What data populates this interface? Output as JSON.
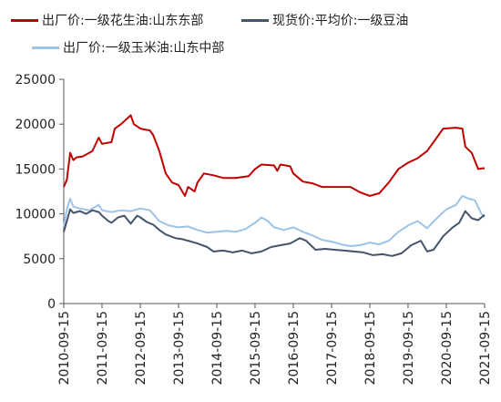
{
  "chart_data": {
    "type": "line",
    "title": "",
    "xlabel": "",
    "ylabel": "",
    "ylim": [
      0,
      25000
    ],
    "yticks": [
      0,
      5000,
      10000,
      15000,
      20000,
      25000
    ],
    "ytick_labels": [
      "0",
      "5000",
      "10000",
      "15000",
      "20000",
      "25000"
    ],
    "xticks": [
      "2010-09-15",
      "2011-09-15",
      "2012-09-15",
      "2013-09-15",
      "2014-09-15",
      "2015-09-15",
      "2016-09-15",
      "2017-09-15",
      "2018-09-15",
      "2019-09-15",
      "2020-09-15",
      "2021-09-15"
    ],
    "xlim": [
      "2010-09-15",
      "2021-09-15"
    ],
    "grid": false,
    "legend_position": "top",
    "series": [
      {
        "name": "出厂价:一级花生油:山东东部",
        "color": "#c00000",
        "points": [
          [
            "2010-09-15",
            13000
          ],
          [
            "2010-10-15",
            13800
          ],
          [
            "2010-11-15",
            16800
          ],
          [
            "2010-12-15",
            16000
          ],
          [
            "2011-01-15",
            16300
          ],
          [
            "2011-03-15",
            16400
          ],
          [
            "2011-06-15",
            17000
          ],
          [
            "2011-08-15",
            18500
          ],
          [
            "2011-09-15",
            17800
          ],
          [
            "2011-12-15",
            18000
          ],
          [
            "2012-01-15",
            19500
          ],
          [
            "2012-03-15",
            20000
          ],
          [
            "2012-06-15",
            21000
          ],
          [
            "2012-07-15",
            20000
          ],
          [
            "2012-09-15",
            19500
          ],
          [
            "2012-12-15",
            19300
          ],
          [
            "2013-01-15",
            18800
          ],
          [
            "2013-03-15",
            17000
          ],
          [
            "2013-05-15",
            14500
          ],
          [
            "2013-07-15",
            13500
          ],
          [
            "2013-09-15",
            13200
          ],
          [
            "2013-11-15",
            12000
          ],
          [
            "2013-12-15",
            13000
          ],
          [
            "2014-02-15",
            12500
          ],
          [
            "2014-03-15",
            13500
          ],
          [
            "2014-05-15",
            14500
          ],
          [
            "2014-08-15",
            14300
          ],
          [
            "2014-11-15",
            14000
          ],
          [
            "2015-03-15",
            14000
          ],
          [
            "2015-07-15",
            14200
          ],
          [
            "2015-09-15",
            15000
          ],
          [
            "2015-11-15",
            15500
          ],
          [
            "2016-03-15",
            15400
          ],
          [
            "2016-04-15",
            14800
          ],
          [
            "2016-05-15",
            15500
          ],
          [
            "2016-08-15",
            15300
          ],
          [
            "2016-09-15",
            14500
          ],
          [
            "2016-12-15",
            13600
          ],
          [
            "2017-03-15",
            13400
          ],
          [
            "2017-06-15",
            13000
          ],
          [
            "2017-09-15",
            13000
          ],
          [
            "2018-03-15",
            13000
          ],
          [
            "2018-06-15",
            12400
          ],
          [
            "2018-09-15",
            12000
          ],
          [
            "2018-12-15",
            12300
          ],
          [
            "2019-03-15",
            13500
          ],
          [
            "2019-06-15",
            15000
          ],
          [
            "2019-09-15",
            15700
          ],
          [
            "2019-12-15",
            16200
          ],
          [
            "2020-03-15",
            17000
          ],
          [
            "2020-06-15",
            18500
          ],
          [
            "2020-08-15",
            19500
          ],
          [
            "2020-12-15",
            19600
          ],
          [
            "2021-02-15",
            19500
          ],
          [
            "2021-03-15",
            17500
          ],
          [
            "2021-05-15",
            16800
          ],
          [
            "2021-07-15",
            15000
          ],
          [
            "2021-09-15",
            15100
          ]
        ]
      },
      {
        "name": "现货价:平均价:一级豆油",
        "color": "#44546a",
        "points": [
          [
            "2010-09-15",
            8000
          ],
          [
            "2010-10-15",
            9200
          ],
          [
            "2010-11-15",
            10500
          ],
          [
            "2010-12-15",
            10100
          ],
          [
            "2011-02-15",
            10300
          ],
          [
            "2011-04-15",
            10000
          ],
          [
            "2011-06-15",
            10400
          ],
          [
            "2011-08-15",
            10200
          ],
          [
            "2011-09-15",
            9800
          ],
          [
            "2011-11-15",
            9200
          ],
          [
            "2011-12-15",
            9000
          ],
          [
            "2012-02-15",
            9600
          ],
          [
            "2012-04-15",
            9800
          ],
          [
            "2012-06-15",
            8900
          ],
          [
            "2012-08-15",
            9800
          ],
          [
            "2012-09-15",
            9600
          ],
          [
            "2012-11-15",
            9100
          ],
          [
            "2013-01-15",
            8800
          ],
          [
            "2013-03-15",
            8200
          ],
          [
            "2013-05-15",
            7700
          ],
          [
            "2013-08-15",
            7300
          ],
          [
            "2013-10-15",
            7200
          ],
          [
            "2013-12-15",
            7000
          ],
          [
            "2014-03-15",
            6700
          ],
          [
            "2014-06-15",
            6300
          ],
          [
            "2014-08-15",
            5800
          ],
          [
            "2014-11-15",
            5900
          ],
          [
            "2015-02-15",
            5700
          ],
          [
            "2015-05-15",
            5900
          ],
          [
            "2015-08-15",
            5600
          ],
          [
            "2015-11-15",
            5800
          ],
          [
            "2016-02-15",
            6300
          ],
          [
            "2016-05-15",
            6500
          ],
          [
            "2016-08-15",
            6700
          ],
          [
            "2016-11-15",
            7300
          ],
          [
            "2017-01-15",
            7000
          ],
          [
            "2017-04-15",
            6000
          ],
          [
            "2017-07-15",
            6100
          ],
          [
            "2017-10-15",
            6000
          ],
          [
            "2018-01-15",
            5900
          ],
          [
            "2018-04-15",
            5800
          ],
          [
            "2018-07-15",
            5700
          ],
          [
            "2018-10-15",
            5400
          ],
          [
            "2019-01-15",
            5500
          ],
          [
            "2019-04-15",
            5300
          ],
          [
            "2019-07-15",
            5600
          ],
          [
            "2019-10-15",
            6500
          ],
          [
            "2020-01-15",
            7000
          ],
          [
            "2020-03-15",
            5800
          ],
          [
            "2020-05-15",
            6000
          ],
          [
            "2020-08-15",
            7500
          ],
          [
            "2020-11-15",
            8500
          ],
          [
            "2021-01-15",
            9000
          ],
          [
            "2021-03-15",
            10300
          ],
          [
            "2021-05-15",
            9500
          ],
          [
            "2021-07-15",
            9300
          ],
          [
            "2021-09-15",
            9900
          ]
        ]
      },
      {
        "name": "出厂价:一级玉米油:山东中部",
        "color": "#9dc3e6",
        "points": [
          [
            "2010-09-15",
            8500
          ],
          [
            "2010-10-15",
            10500
          ],
          [
            "2010-11-15",
            11700
          ],
          [
            "2010-12-15",
            10800
          ],
          [
            "2011-02-15",
            10600
          ],
          [
            "2011-05-15",
            10400
          ],
          [
            "2011-08-15",
            11000
          ],
          [
            "2011-09-15",
            10400
          ],
          [
            "2011-12-15",
            10200
          ],
          [
            "2012-03-15",
            10400
          ],
          [
            "2012-06-15",
            10300
          ],
          [
            "2012-09-15",
            10600
          ],
          [
            "2012-12-15",
            10400
          ],
          [
            "2013-03-15",
            9200
          ],
          [
            "2013-06-15",
            8700
          ],
          [
            "2013-09-15",
            8500
          ],
          [
            "2013-12-15",
            8600
          ],
          [
            "2014-03-15",
            8200
          ],
          [
            "2014-06-15",
            7900
          ],
          [
            "2014-09-15",
            8000
          ],
          [
            "2014-12-15",
            8100
          ],
          [
            "2015-03-15",
            8000
          ],
          [
            "2015-06-15",
            8300
          ],
          [
            "2015-09-15",
            9000
          ],
          [
            "2015-11-15",
            9600
          ],
          [
            "2016-01-15",
            9200
          ],
          [
            "2016-03-15",
            8500
          ],
          [
            "2016-06-15",
            8200
          ],
          [
            "2016-09-15",
            8500
          ],
          [
            "2016-12-15",
            8000
          ],
          [
            "2017-03-15",
            7600
          ],
          [
            "2017-06-15",
            7100
          ],
          [
            "2017-09-15",
            6900
          ],
          [
            "2017-12-15",
            6600
          ],
          [
            "2018-03-15",
            6400
          ],
          [
            "2018-06-15",
            6500
          ],
          [
            "2018-09-15",
            6800
          ],
          [
            "2018-12-15",
            6600
          ],
          [
            "2019-03-15",
            7000
          ],
          [
            "2019-06-15",
            8000
          ],
          [
            "2019-09-15",
            8700
          ],
          [
            "2019-12-15",
            9200
          ],
          [
            "2020-03-15",
            8400
          ],
          [
            "2020-06-15",
            9500
          ],
          [
            "2020-09-15",
            10500
          ],
          [
            "2020-12-15",
            11000
          ],
          [
            "2021-02-15",
            12000
          ],
          [
            "2021-04-15",
            11700
          ],
          [
            "2021-06-15",
            11500
          ],
          [
            "2021-08-15",
            10000
          ],
          [
            "2021-09-15",
            9600
          ]
        ]
      }
    ]
  }
}
